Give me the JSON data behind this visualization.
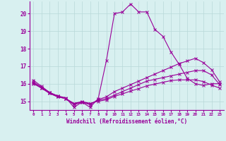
{
  "title": "",
  "xlabel": "Windchill (Refroidissement éolien,°C)",
  "ylabel": "",
  "xlim": [
    -0.5,
    23.5
  ],
  "ylim": [
    14.5,
    20.7
  ],
  "xticks": [
    0,
    1,
    2,
    3,
    4,
    5,
    6,
    7,
    8,
    9,
    10,
    11,
    12,
    13,
    14,
    15,
    16,
    17,
    18,
    19,
    20,
    21,
    22,
    23
  ],
  "yticks": [
    15,
    16,
    17,
    18,
    19,
    20
  ],
  "background_color": "#d8f0f0",
  "grid_color": "#b8d8d8",
  "line_color": "#990099",
  "line1": [
    16.2,
    15.85,
    15.5,
    15.3,
    15.2,
    14.65,
    14.95,
    14.65,
    15.15,
    17.3,
    20.0,
    20.1,
    20.55,
    20.1,
    20.1,
    19.1,
    18.7,
    17.8,
    17.1,
    16.3,
    16.0,
    15.9,
    16.0,
    16.0
  ],
  "line2": [
    16.1,
    15.8,
    15.5,
    15.3,
    15.15,
    14.8,
    14.95,
    14.8,
    15.1,
    15.25,
    15.55,
    15.75,
    15.95,
    16.15,
    16.35,
    16.55,
    16.75,
    16.95,
    17.15,
    17.3,
    17.45,
    17.2,
    16.8,
    16.1
  ],
  "line3": [
    16.05,
    15.75,
    15.45,
    15.25,
    15.15,
    14.85,
    14.95,
    14.85,
    15.05,
    15.15,
    15.35,
    15.55,
    15.75,
    15.95,
    16.15,
    16.25,
    16.35,
    16.45,
    16.55,
    16.65,
    16.75,
    16.75,
    16.5,
    15.95
  ],
  "line4": [
    16.0,
    15.75,
    15.45,
    15.25,
    15.15,
    14.88,
    14.98,
    14.88,
    15.0,
    15.08,
    15.28,
    15.42,
    15.58,
    15.72,
    15.88,
    15.98,
    16.08,
    16.18,
    16.22,
    16.22,
    16.22,
    16.12,
    15.92,
    15.75
  ]
}
